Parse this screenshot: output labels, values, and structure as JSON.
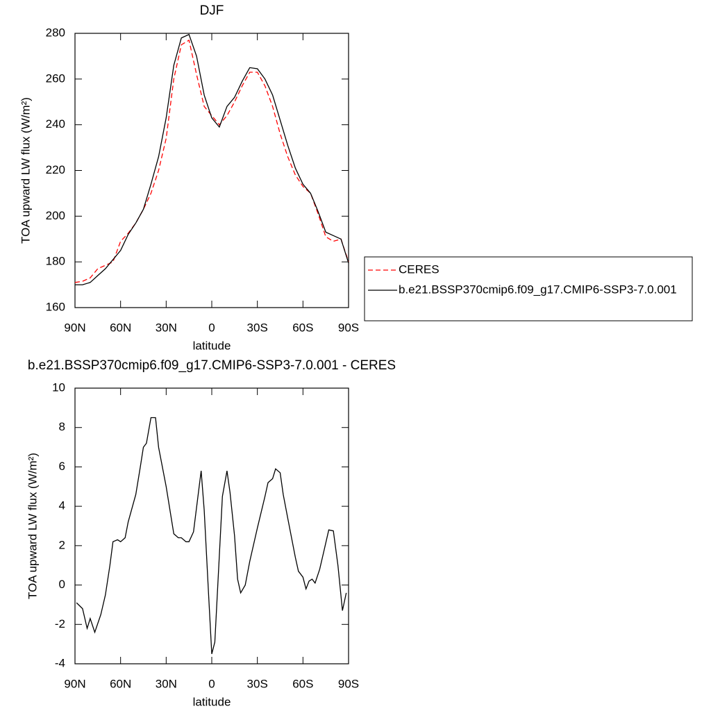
{
  "chart_data": [
    {
      "type": "line",
      "title": "DJF",
      "x_label": "latitude",
      "y_label": "TOA upward LW flux (W/m²)",
      "xlim": [
        90,
        -90
      ],
      "ylim": [
        160,
        280
      ],
      "xticks": [
        {
          "value": 90,
          "label": "90N"
        },
        {
          "value": 60,
          "label": "60N"
        },
        {
          "value": 30,
          "label": "30N"
        },
        0,
        {
          "value": -30,
          "label": "30S"
        },
        {
          "value": -60,
          "label": "60S"
        },
        {
          "value": -90,
          "label": "90S"
        }
      ],
      "yticks": [
        160,
        180,
        200,
        220,
        240,
        260,
        280
      ],
      "legend": "right",
      "x": [
        90,
        85,
        80,
        75,
        70,
        65,
        60,
        55,
        50,
        45,
        40,
        35,
        30,
        25,
        20,
        15,
        10,
        5,
        0,
        -5,
        -10,
        -15,
        -20,
        -25,
        -30,
        -35,
        -40,
        -45,
        -50,
        -55,
        -60,
        -65,
        -70,
        -75,
        -80,
        -85,
        -90
      ],
      "series": [
        {
          "name": "CERES",
          "color": "#ff0000",
          "dash": "dashed",
          "values": [
            171,
            171.5,
            173,
            177,
            178.5,
            180,
            189,
            192.5,
            197,
            203,
            210,
            220,
            234,
            260,
            275,
            277,
            262,
            248,
            244,
            240,
            244,
            250,
            257,
            263,
            263,
            257,
            248,
            236,
            226,
            218,
            213,
            210,
            201,
            191,
            189,
            190,
            180
          ]
        },
        {
          "name": "b.e21.BSSP370cmip6.f09_g17.CMIP6-SSP3-7.0.001",
          "color": "#000000",
          "dash": "solid",
          "values": [
            170,
            170,
            171,
            174,
            177,
            181,
            185,
            192,
            197,
            203,
            214,
            226,
            243,
            266,
            278,
            279.5,
            270,
            253,
            243,
            239,
            248,
            252,
            259,
            265,
            264.5,
            260,
            253,
            242,
            231,
            221,
            214,
            210,
            202,
            193,
            191.5,
            190,
            179.5
          ]
        }
      ]
    },
    {
      "type": "line",
      "title": "b.e21.BSSP370cmip6.f09_g17.CMIP6-SSP3-7.0.001 - CERES",
      "x_label": "latitude",
      "y_label": "TOA upward LW flux (W/m²)",
      "xlim": [
        90,
        -90
      ],
      "ylim": [
        -4,
        10
      ],
      "xticks": [
        {
          "value": 90,
          "label": "90N"
        },
        {
          "value": 60,
          "label": "60N"
        },
        {
          "value": 30,
          "label": "30N"
        },
        0,
        {
          "value": -30,
          "label": "30S"
        },
        {
          "value": -60,
          "label": "60S"
        },
        {
          "value": -90,
          "label": "90S"
        }
      ],
      "yticks": [
        -4,
        -2,
        0,
        2,
        4,
        6,
        8,
        10
      ],
      "x": [
        89,
        85,
        82,
        80,
        77,
        73,
        70,
        67,
        65,
        62,
        60,
        57,
        55,
        50,
        47,
        45,
        43,
        40,
        37,
        35,
        30,
        25,
        22,
        20,
        17,
        15,
        12,
        7,
        5,
        2,
        0,
        -2,
        -5,
        -7,
        -10,
        -12,
        -15,
        -17,
        -19,
        -22,
        -25,
        -30,
        -35,
        -37,
        -40,
        -42,
        -45,
        -47,
        -50,
        -55,
        -57,
        -60,
        -62,
        -64,
        -66,
        -68,
        -71,
        -74,
        -77,
        -80,
        -83,
        -86,
        -88.5
      ],
      "series": [
        {
          "name": "b.e21.BSSP370cmip6.f09_g17.CMIP6-SSP3-7.0.001 - CERES",
          "color": "#000000",
          "dash": "solid",
          "values": [
            -0.9,
            -1.2,
            -2.2,
            -1.7,
            -2.4,
            -1.5,
            -0.5,
            1.0,
            2.2,
            2.3,
            2.2,
            2.4,
            3.2,
            4.6,
            6.0,
            7.0,
            7.2,
            8.5,
            8.5,
            7.0,
            5.0,
            2.6,
            2.4,
            2.4,
            2.2,
            2.2,
            2.7,
            5.8,
            3.8,
            -0.6,
            -3.5,
            -2.9,
            1.5,
            4.5,
            5.8,
            4.7,
            2.5,
            0.3,
            -0.4,
            0,
            1.2,
            2.9,
            4.5,
            5.2,
            5.4,
            5.9,
            5.7,
            4.6,
            3.4,
            1.4,
            0.7,
            0.4,
            -0.2,
            0.2,
            0.3,
            0.1,
            0.8,
            1.8,
            2.8,
            2.75,
            1.0,
            -1.3,
            -0.4
          ]
        }
      ]
    }
  ]
}
